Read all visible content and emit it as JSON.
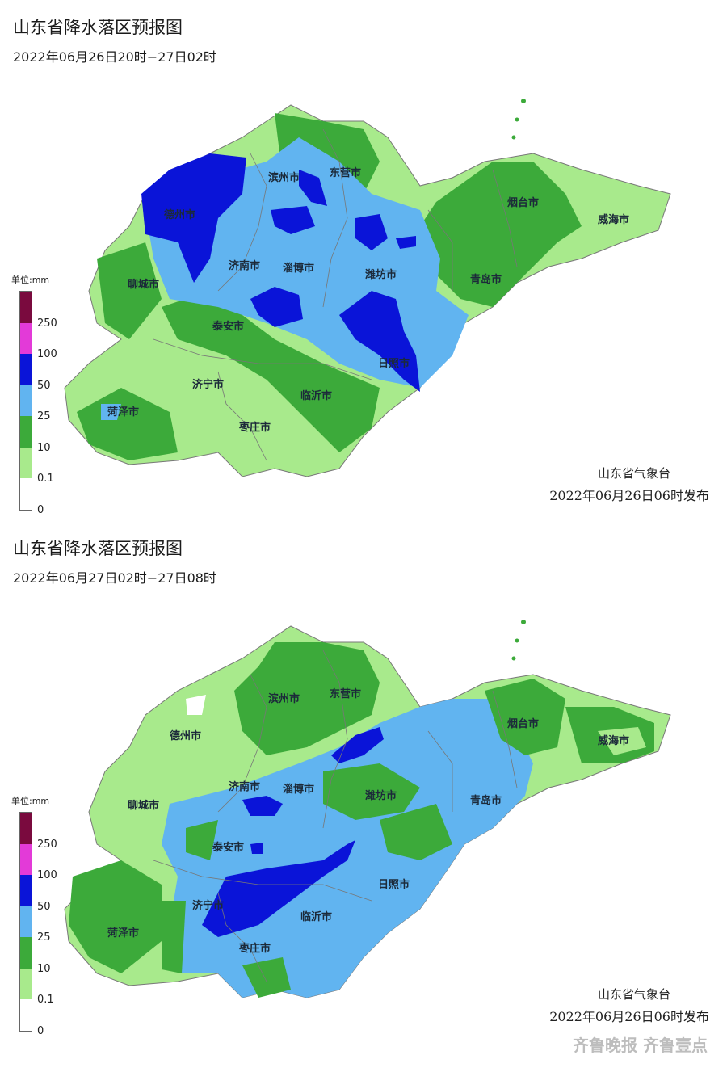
{
  "panels": [
    {
      "title": "山东省降水落区预报图",
      "period": "2022年06月26日20时−27日02时",
      "issuer": "山东省气象台",
      "issue_time": "2022年06月26日06时发布",
      "cities": [
        "滨州市",
        "东营市",
        "德州市",
        "烟台市",
        "威海市",
        "聊城市",
        "济南市",
        "淄博市",
        "潍坊市",
        "青岛市",
        "泰安市",
        "日照市",
        "济宁市",
        "临沂市",
        "菏泽市",
        "枣庄市"
      ]
    },
    {
      "title": "山东省降水落区预报图",
      "period": "2022年06月27日02时−27日08时",
      "issuer": "山东省气象台",
      "issue_time": "2022年06月26日06时发布",
      "cities": [
        "滨州市",
        "东营市",
        "德州市",
        "烟台市",
        "威海市",
        "聊城市",
        "济南市",
        "淄博市",
        "潍坊市",
        "青岛市",
        "泰安市",
        "日照市",
        "济宁市",
        "临沂市",
        "菏泽市",
        "枣庄市"
      ]
    }
  ],
  "legend": {
    "unit": "单位:mm",
    "ticks": [
      "250",
      "100",
      "50",
      "25",
      "10",
      "0.1",
      "0"
    ],
    "colors": [
      "#7a0a3e",
      "#e33ad8",
      "#0a14d8",
      "#61b4f0",
      "#3caa3a",
      "#a8ea8c",
      "#ffffff"
    ]
  },
  "watermark": "齐鲁晚报 齐鲁壹点"
}
